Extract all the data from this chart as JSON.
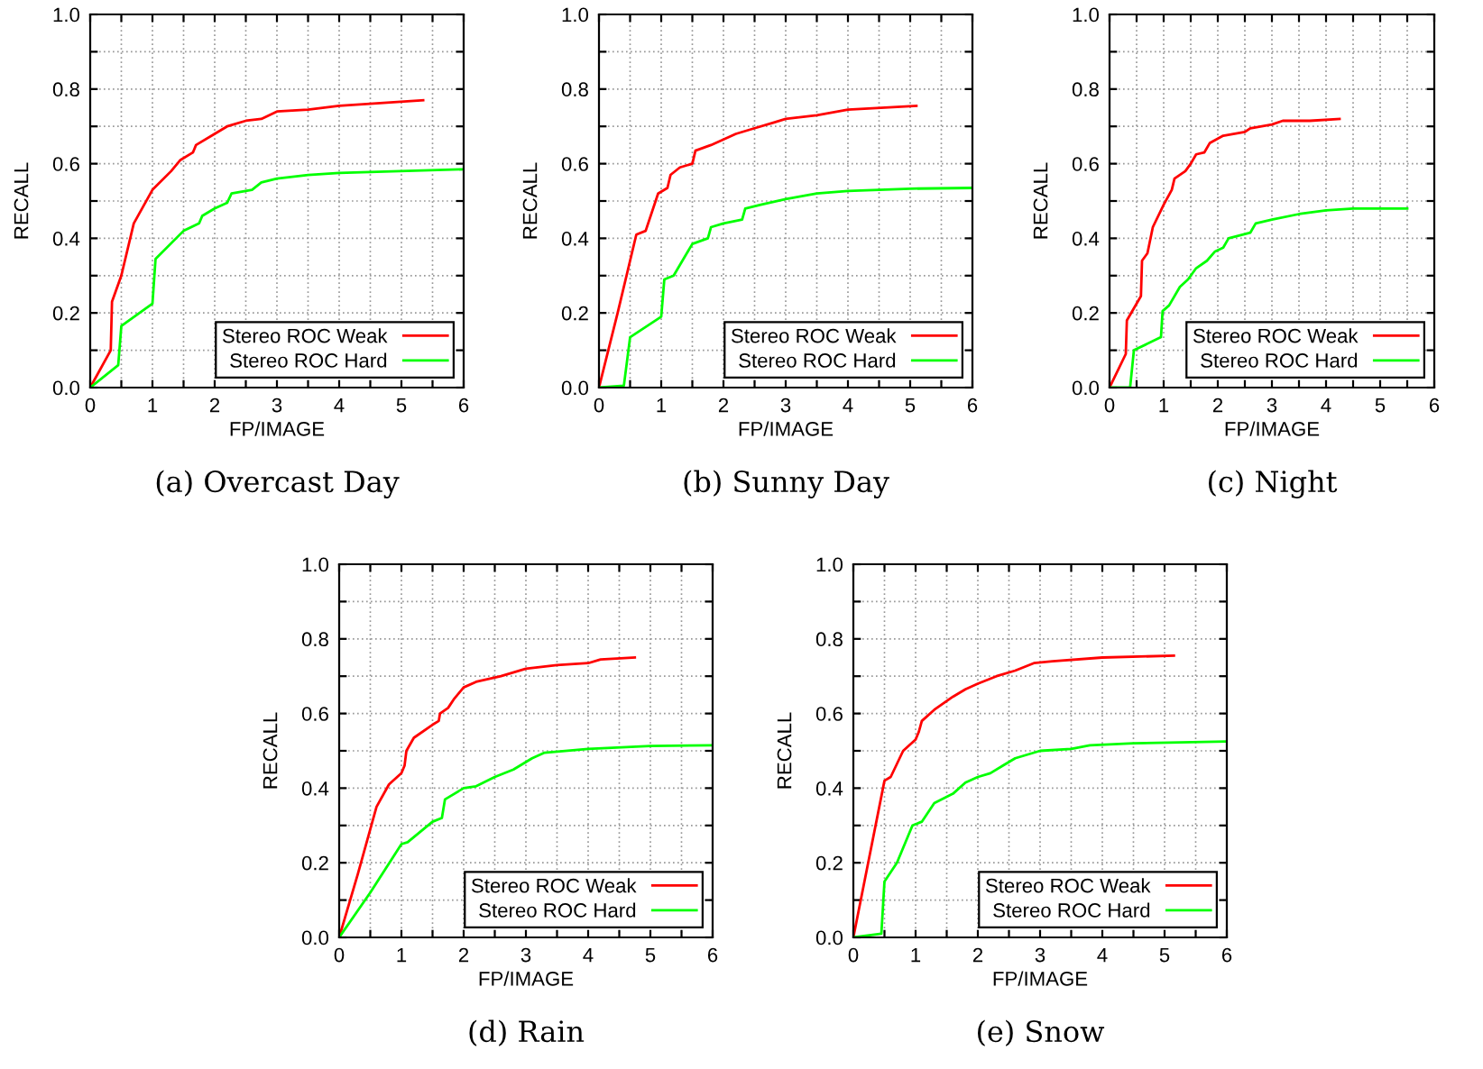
{
  "chart_data": [
    {
      "type": "line",
      "title": "(a) Overcast Day",
      "xlabel": "FP/IMAGE",
      "ylabel": "RECALL",
      "xlim": [
        0,
        6
      ],
      "ylim": [
        0,
        1
      ],
      "grid": true,
      "legend": "bottom right",
      "line_style": "solid",
      "xticks": [
        0,
        {
          "value": 0.5,
          "label": null
        },
        1,
        {
          "value": 1.5,
          "label": null
        },
        2,
        {
          "value": 2.5,
          "label": null
        },
        3,
        {
          "value": 3.5,
          "label": null
        },
        4,
        {
          "value": 4.5,
          "label": null
        },
        5,
        {
          "value": 5.5,
          "label": null
        },
        6
      ],
      "yticks": [
        {
          "value": 0,
          "label": "0.0"
        },
        {
          "value": 0.1,
          "label": null
        },
        {
          "value": 0.2,
          "label": "0.2"
        },
        {
          "value": 0.3,
          "label": null
        },
        {
          "value": 0.4,
          "label": "0.4"
        },
        {
          "value": 0.5,
          "label": null
        },
        {
          "value": 0.6,
          "label": "0.6"
        },
        {
          "value": 0.7,
          "label": null
        },
        {
          "value": 0.8,
          "label": "0.8"
        },
        {
          "value": 0.9,
          "label": null
        },
        {
          "value": 1,
          "label": "1.0"
        }
      ],
      "series": [
        {
          "name": "Stereo ROC Weak",
          "color": "#ff0000",
          "x": [
            0,
            0.33,
            0.35,
            0.5,
            0.7,
            1.0,
            1.3,
            1.45,
            1.65,
            1.7,
            2.0,
            2.2,
            2.5,
            2.75,
            3.0,
            3.5,
            4.0,
            5.35
          ],
          "values": [
            0,
            0.1,
            0.23,
            0.3,
            0.44,
            0.53,
            0.58,
            0.61,
            0.63,
            0.65,
            0.68,
            0.7,
            0.715,
            0.72,
            0.74,
            0.745,
            0.755,
            0.77
          ]
        },
        {
          "name": "Stereo ROC Hard",
          "color": "#00ff00",
          "x": [
            0,
            0.45,
            0.5,
            1.0,
            1.05,
            1.5,
            1.75,
            1.8,
            2.0,
            2.2,
            2.27,
            2.6,
            2.75,
            3.0,
            3.5,
            4.0,
            6.0
          ],
          "values": [
            0,
            0.06,
            0.165,
            0.225,
            0.345,
            0.42,
            0.44,
            0.46,
            0.48,
            0.495,
            0.52,
            0.53,
            0.55,
            0.56,
            0.57,
            0.575,
            0.585
          ]
        }
      ]
    },
    {
      "type": "line",
      "title": "(b) Sunny Day",
      "xlabel": "FP/IMAGE",
      "ylabel": "RECALL",
      "xlim": [
        0,
        6
      ],
      "ylim": [
        0,
        1
      ],
      "grid": true,
      "legend": "bottom right",
      "line_style": "solid",
      "xticks": [
        0,
        {
          "value": 0.5,
          "label": null
        },
        1,
        {
          "value": 1.5,
          "label": null
        },
        2,
        {
          "value": 2.5,
          "label": null
        },
        3,
        {
          "value": 3.5,
          "label": null
        },
        4,
        {
          "value": 4.5,
          "label": null
        },
        5,
        {
          "value": 5.5,
          "label": null
        },
        6
      ],
      "yticks": [
        {
          "value": 0,
          "label": "0.0"
        },
        {
          "value": 0.1,
          "label": null
        },
        {
          "value": 0.2,
          "label": "0.2"
        },
        {
          "value": 0.3,
          "label": null
        },
        {
          "value": 0.4,
          "label": "0.4"
        },
        {
          "value": 0.5,
          "label": null
        },
        {
          "value": 0.6,
          "label": "0.6"
        },
        {
          "value": 0.7,
          "label": null
        },
        {
          "value": 0.8,
          "label": "0.8"
        },
        {
          "value": 0.9,
          "label": null
        },
        {
          "value": 1,
          "label": "1.0"
        }
      ],
      "series": [
        {
          "name": "Stereo ROC Weak",
          "color": "#ff0000",
          "x": [
            0,
            0.3,
            0.6,
            0.75,
            0.95,
            1.1,
            1.15,
            1.3,
            1.5,
            1.55,
            1.8,
            2.0,
            2.2,
            2.5,
            2.8,
            3.0,
            3.5,
            4.0,
            5.1
          ],
          "values": [
            0,
            0.2,
            0.41,
            0.42,
            0.52,
            0.535,
            0.57,
            0.59,
            0.6,
            0.635,
            0.65,
            0.665,
            0.68,
            0.695,
            0.71,
            0.72,
            0.73,
            0.745,
            0.755
          ]
        },
        {
          "name": "Stereo ROC Hard",
          "color": "#00ff00",
          "x": [
            0,
            0.4,
            0.5,
            1.0,
            1.05,
            1.2,
            1.5,
            1.75,
            1.8,
            2.0,
            2.3,
            2.35,
            2.6,
            3.0,
            3.5,
            4.0,
            5.0,
            6.0
          ],
          "values": [
            0,
            0.005,
            0.135,
            0.19,
            0.29,
            0.3,
            0.385,
            0.4,
            0.43,
            0.44,
            0.45,
            0.48,
            0.49,
            0.505,
            0.52,
            0.527,
            0.533,
            0.535
          ]
        }
      ]
    },
    {
      "type": "line",
      "title": "(c) Night",
      "xlabel": "FP/IMAGE",
      "ylabel": "RECALL",
      "xlim": [
        0,
        6
      ],
      "ylim": [
        0,
        1
      ],
      "grid": true,
      "legend": "bottom right",
      "line_style": "solid",
      "xticks": [
        0,
        {
          "value": 0.5,
          "label": null
        },
        1,
        {
          "value": 1.5,
          "label": null
        },
        2,
        {
          "value": 2.5,
          "label": null
        },
        3,
        {
          "value": 3.5,
          "label": null
        },
        4,
        {
          "value": 4.5,
          "label": null
        },
        5,
        {
          "value": 5.5,
          "label": null
        },
        6
      ],
      "yticks": [
        {
          "value": 0,
          "label": "0.0"
        },
        {
          "value": 0.1,
          "label": null
        },
        {
          "value": 0.2,
          "label": "0.2"
        },
        {
          "value": 0.3,
          "label": null
        },
        {
          "value": 0.4,
          "label": "0.4"
        },
        {
          "value": 0.5,
          "label": null
        },
        {
          "value": 0.6,
          "label": "0.6"
        },
        {
          "value": 0.7,
          "label": null
        },
        {
          "value": 0.8,
          "label": "0.8"
        },
        {
          "value": 0.9,
          "label": null
        },
        {
          "value": 1,
          "label": "1.0"
        }
      ],
      "series": [
        {
          "name": "Stereo ROC Weak",
          "color": "#ff0000",
          "x": [
            0,
            0.3,
            0.32,
            0.58,
            0.6,
            0.7,
            0.8,
            1.0,
            1.15,
            1.2,
            1.4,
            1.5,
            1.6,
            1.75,
            1.85,
            2.1,
            2.5,
            2.6,
            3.0,
            3.2,
            3.7,
            4.25
          ],
          "values": [
            0,
            0.09,
            0.18,
            0.245,
            0.34,
            0.36,
            0.43,
            0.49,
            0.53,
            0.56,
            0.58,
            0.6,
            0.625,
            0.63,
            0.655,
            0.675,
            0.685,
            0.695,
            0.705,
            0.715,
            0.715,
            0.72
          ]
        },
        {
          "name": "Stereo ROC Hard",
          "color": "#00ff00",
          "x": [
            0,
            0.38,
            0.45,
            0.95,
            0.98,
            1.1,
            1.3,
            1.45,
            1.6,
            1.8,
            1.95,
            2.1,
            2.2,
            2.6,
            2.7,
            3.0,
            3.5,
            4.0,
            4.5,
            5.5
          ],
          "values": [
            0,
            0,
            0.1,
            0.135,
            0.205,
            0.22,
            0.27,
            0.29,
            0.32,
            0.34,
            0.365,
            0.375,
            0.4,
            0.415,
            0.44,
            0.45,
            0.465,
            0.475,
            0.48,
            0.48
          ]
        }
      ]
    },
    {
      "type": "line",
      "title": "(d) Rain",
      "xlabel": "FP/IMAGE",
      "ylabel": "RECALL",
      "xlim": [
        0,
        6
      ],
      "ylim": [
        0,
        1
      ],
      "grid": true,
      "legend": "bottom right",
      "line_style": "solid",
      "xticks": [
        0,
        {
          "value": 0.5,
          "label": null
        },
        1,
        {
          "value": 1.5,
          "label": null
        },
        2,
        {
          "value": 2.5,
          "label": null
        },
        3,
        {
          "value": 3.5,
          "label": null
        },
        4,
        {
          "value": 4.5,
          "label": null
        },
        5,
        {
          "value": 5.5,
          "label": null
        },
        6
      ],
      "yticks": [
        {
          "value": 0,
          "label": "0.0"
        },
        {
          "value": 0.1,
          "label": null
        },
        {
          "value": 0.2,
          "label": "0.2"
        },
        {
          "value": 0.3,
          "label": null
        },
        {
          "value": 0.4,
          "label": "0.4"
        },
        {
          "value": 0.5,
          "label": null
        },
        {
          "value": 0.6,
          "label": "0.6"
        },
        {
          "value": 0.7,
          "label": null
        },
        {
          "value": 0.8,
          "label": "0.8"
        },
        {
          "value": 0.9,
          "label": null
        },
        {
          "value": 1,
          "label": "1.0"
        }
      ],
      "series": [
        {
          "name": "Stereo ROC Weak",
          "color": "#ff0000",
          "x": [
            0,
            0.3,
            0.6,
            0.8,
            1.0,
            1.05,
            1.08,
            1.2,
            1.5,
            1.6,
            1.62,
            1.75,
            1.85,
            2.0,
            2.2,
            2.6,
            3.0,
            3.5,
            4.0,
            4.2,
            4.75
          ],
          "values": [
            0,
            0.17,
            0.35,
            0.41,
            0.44,
            0.46,
            0.5,
            0.535,
            0.57,
            0.58,
            0.6,
            0.615,
            0.64,
            0.67,
            0.685,
            0.7,
            0.72,
            0.73,
            0.735,
            0.745,
            0.75
          ]
        },
        {
          "name": "Stereo ROC Hard",
          "color": "#00ff00",
          "x": [
            0,
            0.5,
            1.0,
            1.1,
            1.5,
            1.65,
            1.7,
            2.0,
            2.2,
            2.5,
            2.8,
            3.1,
            3.3,
            4.0,
            5.0,
            6.0
          ],
          "values": [
            0,
            0.12,
            0.25,
            0.255,
            0.31,
            0.32,
            0.37,
            0.4,
            0.405,
            0.43,
            0.45,
            0.48,
            0.495,
            0.505,
            0.513,
            0.515
          ]
        }
      ]
    },
    {
      "type": "line",
      "title": "(e) Snow",
      "xlabel": "FP/IMAGE",
      "ylabel": "RECALL",
      "xlim": [
        0,
        6
      ],
      "ylim": [
        0,
        1
      ],
      "grid": true,
      "legend": "bottom right",
      "line_style": "solid",
      "xticks": [
        0,
        {
          "value": 0.5,
          "label": null
        },
        1,
        {
          "value": 1.5,
          "label": null
        },
        2,
        {
          "value": 2.5,
          "label": null
        },
        3,
        {
          "value": 3.5,
          "label": null
        },
        4,
        {
          "value": 4.5,
          "label": null
        },
        5,
        {
          "value": 5.5,
          "label": null
        },
        6
      ],
      "yticks": [
        {
          "value": 0,
          "label": "0.0"
        },
        {
          "value": 0.1,
          "label": null
        },
        {
          "value": 0.2,
          "label": "0.2"
        },
        {
          "value": 0.3,
          "label": null
        },
        {
          "value": 0.4,
          "label": "0.4"
        },
        {
          "value": 0.5,
          "label": null
        },
        {
          "value": 0.6,
          "label": "0.6"
        },
        {
          "value": 0.7,
          "label": null
        },
        {
          "value": 0.8,
          "label": "0.8"
        },
        {
          "value": 0.9,
          "label": null
        },
        {
          "value": 1,
          "label": "1.0"
        }
      ],
      "series": [
        {
          "name": "Stereo ROC Weak",
          "color": "#ff0000",
          "x": [
            0,
            0.5,
            0.6,
            0.8,
            1.0,
            1.05,
            1.1,
            1.3,
            1.6,
            1.8,
            2.0,
            2.3,
            2.6,
            2.9,
            3.2,
            4.0,
            5.15
          ],
          "values": [
            0,
            0.42,
            0.43,
            0.5,
            0.53,
            0.55,
            0.58,
            0.61,
            0.645,
            0.665,
            0.68,
            0.7,
            0.715,
            0.735,
            0.74,
            0.75,
            0.755
          ]
        },
        {
          "name": "Stereo ROC Hard",
          "color": "#00ff00",
          "x": [
            0,
            0.45,
            0.5,
            0.7,
            0.95,
            1.1,
            1.3,
            1.6,
            1.8,
            2.0,
            2.2,
            2.4,
            2.6,
            3.0,
            3.5,
            3.8,
            4.5,
            6.0
          ],
          "values": [
            0,
            0.01,
            0.15,
            0.2,
            0.3,
            0.31,
            0.36,
            0.385,
            0.415,
            0.43,
            0.44,
            0.46,
            0.48,
            0.5,
            0.505,
            0.515,
            0.52,
            0.525
          ]
        }
      ]
    }
  ]
}
